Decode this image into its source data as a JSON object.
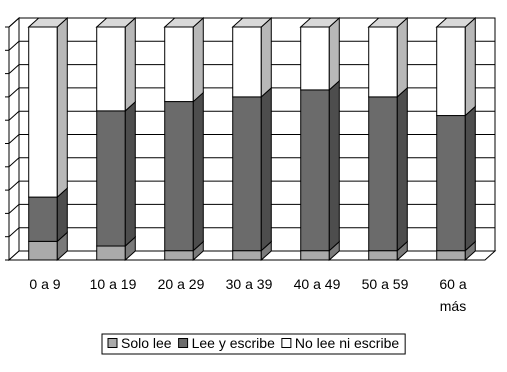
{
  "chart_data": {
    "type": "bar",
    "stacked": true,
    "percent_stacked": true,
    "three_d": true,
    "categories": [
      "0 a 9",
      "10 a 19",
      "20 a 29",
      "30 a 39",
      "40 a 49",
      "50 a 59",
      "60 a\nmás"
    ],
    "series": [
      {
        "name": "Solo lee",
        "values": [
          8,
          6,
          4,
          4,
          4,
          4,
          4
        ],
        "color": "#aaaaaa"
      },
      {
        "name": "Lee y escribe",
        "values": [
          19,
          58,
          64,
          66,
          69,
          66,
          58
        ],
        "color": "#6b6b6b"
      },
      {
        "name": "No lee ni escribe",
        "values": [
          73,
          36,
          32,
          30,
          27,
          30,
          38
        ],
        "color": "#ffffff"
      }
    ],
    "ylim": [
      0,
      100
    ],
    "y_gridlines": 10,
    "grid": true,
    "y_tick_labels_shown": false,
    "legend_position": "bottom",
    "title": "",
    "xlabel": "",
    "ylabel": ""
  }
}
